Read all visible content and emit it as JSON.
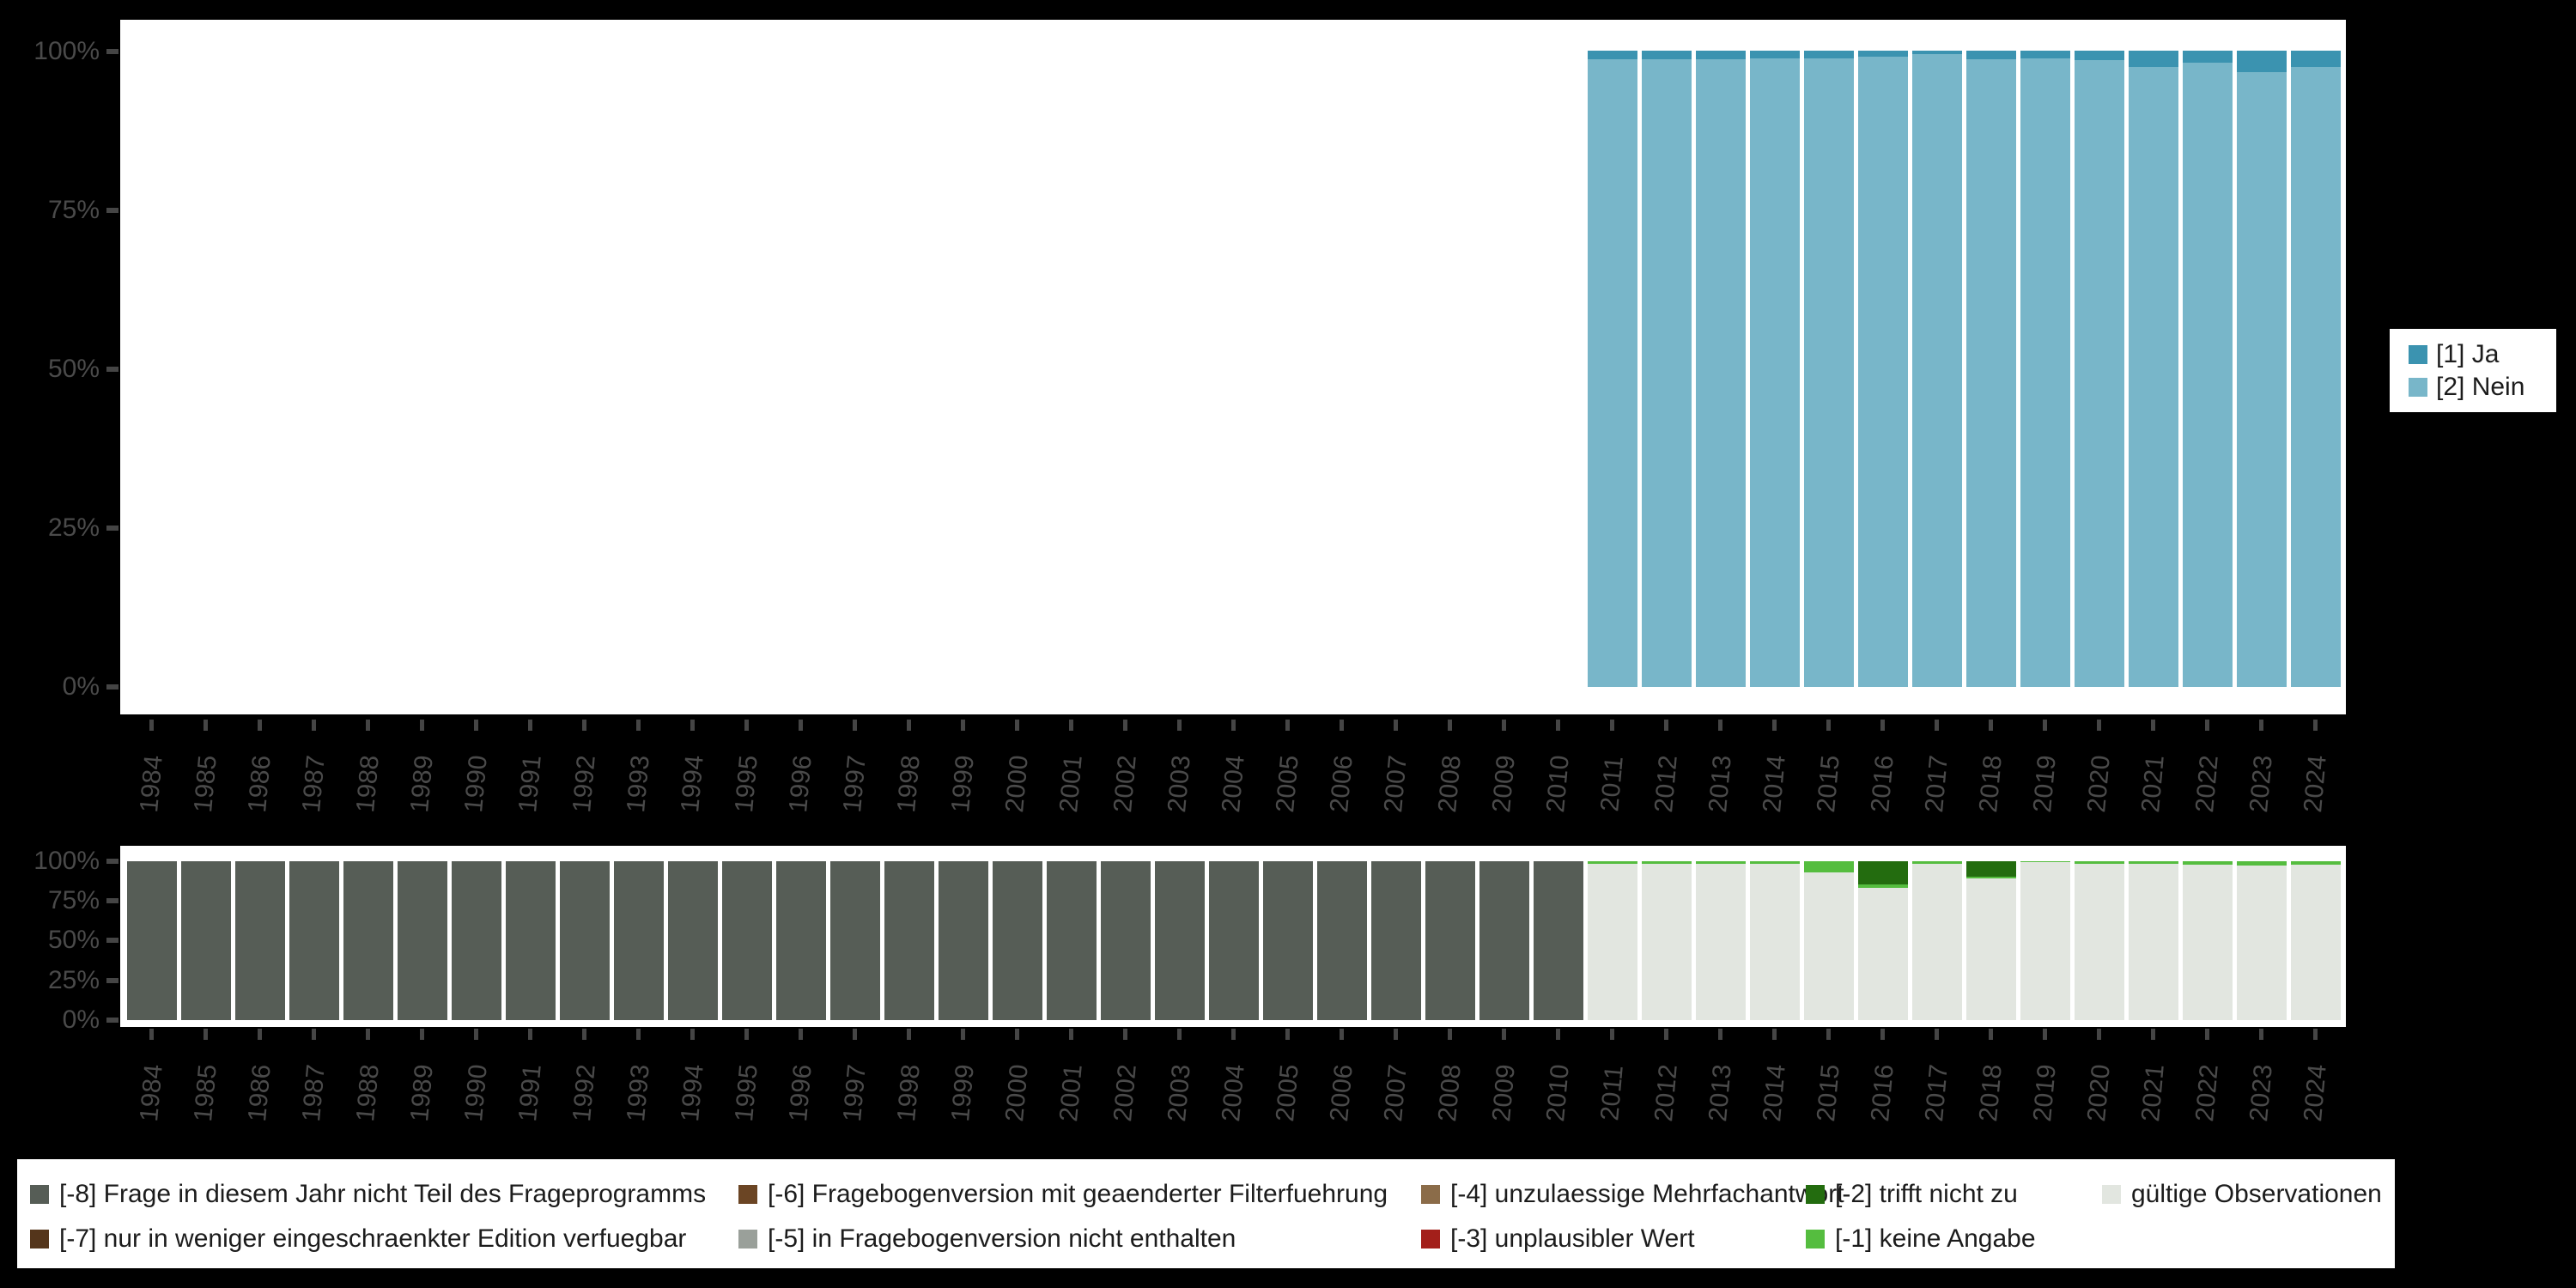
{
  "page": {
    "background_color": "#000000",
    "plot_background_color": "#ffffff",
    "axis_text_color": "#4a4a4a",
    "tick_color": "#454545",
    "legend_text_color": "#1c1c1c"
  },
  "answers_chart": {
    "yticks": [
      "100%",
      "75%",
      "50%",
      "25%",
      "0%"
    ],
    "legend": [
      {
        "label": "[1] Ja",
        "color": "#3b93b0"
      },
      {
        "label": "[2] Nein",
        "color": "#78b6c9"
      }
    ]
  },
  "missings_chart": {
    "yticks": [
      "100%",
      "75%",
      "50%",
      "25%",
      "0%"
    ],
    "legend_columns": [
      [
        {
          "label": "[-8] Frage in diesem Jahr nicht Teil des Frageprogramms",
          "color": "#565d56"
        },
        {
          "label": "[-7] nur in weniger eingeschraenkter Edition verfuegbar",
          "color": "#54351b"
        }
      ],
      [
        {
          "label": "[-6] Fragebogenversion mit geaenderter Filterfuehrung",
          "color": "#6b4524"
        },
        {
          "label": "[-5] in Fragebogenversion nicht enthalten",
          "color": "#9aa09a"
        }
      ],
      [
        {
          "label": "[-4] unzulaessige Mehrfachantwort",
          "color": "#8b6c49"
        },
        {
          "label": "[-3] unplausibler Wert",
          "color": "#a31f1a"
        }
      ],
      [
        {
          "label": "[-2] trifft nicht zu",
          "color": "#236c0f"
        },
        {
          "label": "[-1] keine Angabe",
          "color": "#55bd3f"
        }
      ],
      [
        {
          "label": "gültige Observationen",
          "color": "#e2e6e0"
        }
      ]
    ]
  },
  "chart_data": [
    {
      "type": "bar",
      "stacked": true,
      "stack_order": "top-to-bottom",
      "title": "",
      "xlabel": "",
      "ylabel": "",
      "ylim": [
        0,
        100
      ],
      "yticks_percent": [
        100,
        75,
        50,
        25,
        0
      ],
      "grid": false,
      "legend_position": "right",
      "categories": [
        1984,
        1985,
        1986,
        1987,
        1988,
        1989,
        1990,
        1991,
        1992,
        1993,
        1994,
        1995,
        1996,
        1997,
        1998,
        1999,
        2000,
        2001,
        2002,
        2003,
        2004,
        2005,
        2006,
        2007,
        2008,
        2009,
        2010,
        2011,
        2012,
        2013,
        2014,
        2015,
        2016,
        2017,
        2018,
        2019,
        2020,
        2021,
        2022,
        2023,
        2024
      ],
      "series": [
        {
          "name": "[1] Ja",
          "color": "#3b93b0",
          "values": [
            null,
            null,
            null,
            null,
            null,
            null,
            null,
            null,
            null,
            null,
            null,
            null,
            null,
            null,
            null,
            null,
            null,
            null,
            null,
            null,
            null,
            null,
            null,
            null,
            null,
            null,
            null,
            1.3,
            1.3,
            1.3,
            1.2,
            1.2,
            1.0,
            0.5,
            1.3,
            1.2,
            1.5,
            2.6,
            1.9,
            3.4,
            2.6
          ]
        },
        {
          "name": "[2] Nein",
          "color": "#78b6c9",
          "values": [
            null,
            null,
            null,
            null,
            null,
            null,
            null,
            null,
            null,
            null,
            null,
            null,
            null,
            null,
            null,
            null,
            null,
            null,
            null,
            null,
            null,
            null,
            null,
            null,
            null,
            null,
            null,
            98.7,
            98.7,
            98.7,
            98.8,
            98.8,
            99.0,
            99.5,
            98.7,
            98.8,
            98.5,
            97.4,
            98.1,
            96.6,
            97.4
          ]
        }
      ]
    },
    {
      "type": "bar",
      "stacked": true,
      "stack_order": "top-to-bottom",
      "title": "",
      "xlabel": "",
      "ylabel": "",
      "ylim": [
        0,
        100
      ],
      "yticks_percent": [
        100,
        75,
        50,
        25,
        0
      ],
      "grid": false,
      "legend_position": "bottom",
      "categories": [
        1984,
        1985,
        1986,
        1987,
        1988,
        1989,
        1990,
        1991,
        1992,
        1993,
        1994,
        1995,
        1996,
        1997,
        1998,
        1999,
        2000,
        2001,
        2002,
        2003,
        2004,
        2005,
        2006,
        2007,
        2008,
        2009,
        2010,
        2011,
        2012,
        2013,
        2014,
        2015,
        2016,
        2017,
        2018,
        2019,
        2020,
        2021,
        2022,
        2023,
        2024
      ],
      "series": [
        {
          "name": "[-8] Frage in diesem Jahr nicht Teil des Frageprogramms",
          "color": "#565d56",
          "values": [
            100,
            100,
            100,
            100,
            100,
            100,
            100,
            100,
            100,
            100,
            100,
            100,
            100,
            100,
            100,
            100,
            100,
            100,
            100,
            100,
            100,
            100,
            100,
            100,
            100,
            100,
            100,
            0,
            0,
            0,
            0,
            0,
            0,
            0,
            0,
            0,
            0,
            0,
            0,
            0,
            0
          ]
        },
        {
          "name": "[-2] trifft nicht zu",
          "color": "#236c0f",
          "values": [
            0,
            0,
            0,
            0,
            0,
            0,
            0,
            0,
            0,
            0,
            0,
            0,
            0,
            0,
            0,
            0,
            0,
            0,
            0,
            0,
            0,
            0,
            0,
            0,
            0,
            0,
            0,
            0,
            0,
            0,
            0,
            0,
            14.6,
            0,
            9.5,
            0,
            0,
            0,
            0,
            0,
            0
          ]
        },
        {
          "name": "[-1] keine Angabe",
          "color": "#55bd3f",
          "values": [
            0,
            0,
            0,
            0,
            0,
            0,
            0,
            0,
            0,
            0,
            0,
            0,
            0,
            0,
            0,
            0,
            0,
            0,
            0,
            0,
            0,
            0,
            0,
            0,
            0,
            0,
            0,
            1.8,
            1.8,
            1.4,
            1.4,
            7.2,
            2.2,
            1.4,
            1.2,
            0.7,
            1.4,
            1.8,
            2.2,
            2.9,
            2.2
          ]
        },
        {
          "name": "gültige Observationen",
          "color": "#e2e6e0",
          "values": [
            0,
            0,
            0,
            0,
            0,
            0,
            0,
            0,
            0,
            0,
            0,
            0,
            0,
            0,
            0,
            0,
            0,
            0,
            0,
            0,
            0,
            0,
            0,
            0,
            0,
            0,
            0,
            98.2,
            98.2,
            98.6,
            98.6,
            92.8,
            83.2,
            98.6,
            89.3,
            99.3,
            98.6,
            98.2,
            97.8,
            97.1,
            97.8
          ]
        }
      ]
    }
  ]
}
